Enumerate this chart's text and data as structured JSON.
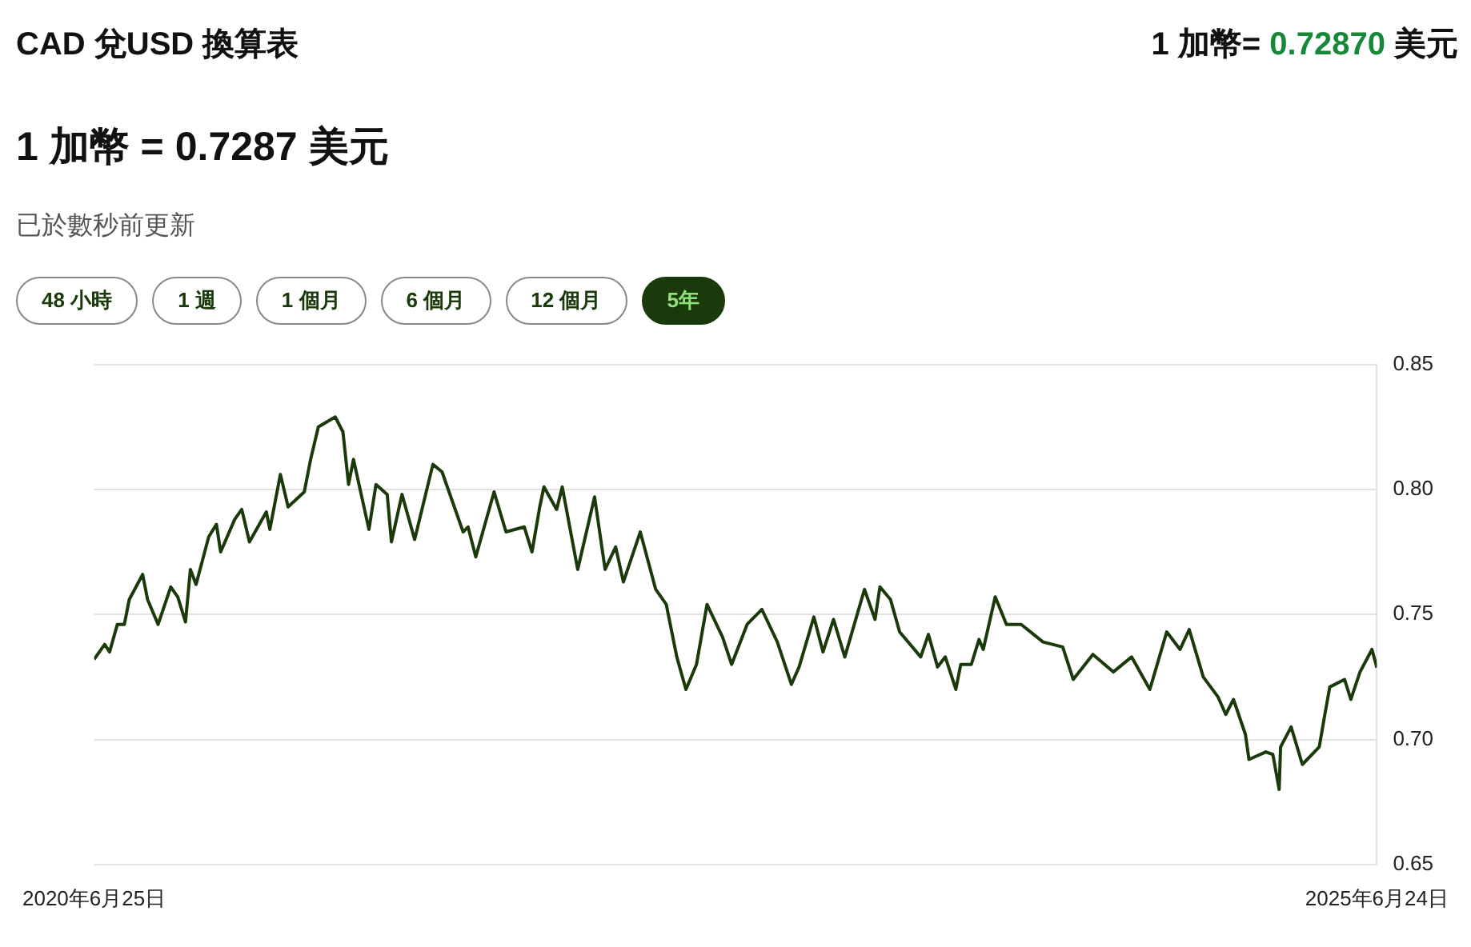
{
  "chart_data": {
    "type": "line",
    "title": "CAD 兌USD 換算表",
    "subtitle": "1 加幣 = 0.7287 美元",
    "annotations": [
      "1 加幣= 0.72870 美元",
      "已於數秒前更新",
      "48 小時",
      "1 週",
      "1 個月",
      "6 個月",
      "12 個月",
      "5年"
    ],
    "x": [
      "2020-06-25",
      "2020-07-10",
      "2020-07-17",
      "2020-07-28",
      "2020-08-07",
      "2020-08-14",
      "2020-09-02",
      "2020-09-09",
      "2020-09-24",
      "2020-10-12",
      "2020-10-22",
      "2020-11-02",
      "2020-11-09",
      "2020-11-17",
      "2020-12-05",
      "2020-12-16",
      "2020-12-22",
      "2021-01-11",
      "2021-01-21",
      "2021-02-01",
      "2021-02-25",
      "2021-03-02",
      "2021-03-17",
      "2021-03-28",
      "2021-04-20",
      "2021-04-29",
      "2021-05-10",
      "2021-06-03",
      "2021-06-14",
      "2021-06-22",
      "2021-06-29",
      "2021-07-21",
      "2021-07-31",
      "2021-08-16",
      "2021-08-22",
      "2021-09-06",
      "2021-09-24",
      "2021-10-20",
      "2021-11-02",
      "2021-12-02",
      "2021-12-09",
      "2021-12-20",
      "2022-01-15",
      "2022-02-01",
      "2022-02-27",
      "2022-03-10",
      "2022-03-21",
      "2022-03-27",
      "2022-04-14",
      "2022-04-22",
      "2022-05-14",
      "2022-06-07",
      "2022-06-22",
      "2022-07-07",
      "2022-07-18",
      "2022-08-11",
      "2022-09-02",
      "2022-09-17",
      "2022-10-02",
      "2022-10-15",
      "2022-10-30",
      "2022-11-14",
      "2022-12-06",
      "2022-12-19",
      "2023-01-10",
      "2023-01-31",
      "2023-02-22",
      "2023-03-14",
      "2023-03-25",
      "2023-04-15",
      "2023-04-28",
      "2023-05-13",
      "2023-05-29",
      "2023-06-26",
      "2023-07-11",
      "2023-07-18",
      "2023-08-02",
      "2023-08-15",
      "2023-09-14",
      "2023-09-25",
      "2023-10-08",
      "2023-10-19",
      "2023-11-03",
      "2023-11-10",
      "2023-11-25",
      "2023-12-06",
      "2023-12-12",
      "2023-12-29",
      "2024-01-14",
      "2024-02-04",
      "2024-03-06",
      "2024-04-03",
      "2024-04-18",
      "2024-05-16",
      "2024-06-14",
      "2024-07-10",
      "2024-08-05",
      "2024-08-29",
      "2024-09-17",
      "2024-09-30",
      "2024-10-20",
      "2024-11-10",
      "2024-11-21",
      "2024-12-02",
      "2024-12-19",
      "2024-12-24",
      "2025-01-17",
      "2025-01-27",
      "2025-02-05",
      "2025-02-07",
      "2025-02-22",
      "2025-03-10",
      "2025-04-03",
      "2025-04-11",
      "2025-04-18",
      "2025-05-09",
      "2025-05-18",
      "2025-05-31",
      "2025-06-17",
      "2025-06-24"
    ],
    "series": [
      {
        "color": "#1b3a0b",
        "values": [
          0.732,
          0.738,
          0.735,
          0.746,
          0.746,
          0.756,
          0.766,
          0.756,
          0.746,
          0.761,
          0.757,
          0.747,
          0.768,
          0.762,
          0.781,
          0.786,
          0.775,
          0.788,
          0.792,
          0.779,
          0.791,
          0.784,
          0.806,
          0.793,
          0.799,
          0.812,
          0.825,
          0.829,
          0.823,
          0.802,
          0.812,
          0.784,
          0.802,
          0.798,
          0.779,
          0.798,
          0.78,
          0.81,
          0.807,
          0.783,
          0.785,
          0.773,
          0.799,
          0.783,
          0.785,
          0.775,
          0.793,
          0.801,
          0.792,
          0.801,
          0.768,
          0.797,
          0.768,
          0.777,
          0.763,
          0.783,
          0.76,
          0.754,
          0.733,
          0.72,
          0.73,
          0.754,
          0.741,
          0.73,
          0.746,
          0.752,
          0.739,
          0.722,
          0.729,
          0.749,
          0.735,
          0.748,
          0.733,
          0.76,
          0.748,
          0.761,
          0.756,
          0.743,
          0.733,
          0.742,
          0.729,
          0.733,
          0.72,
          0.73,
          0.73,
          0.74,
          0.736,
          0.757,
          0.746,
          0.746,
          0.739,
          0.737,
          0.724,
          0.734,
          0.727,
          0.733,
          0.72,
          0.743,
          0.736,
          0.744,
          0.725,
          0.717,
          0.71,
          0.716,
          0.702,
          0.692,
          0.695,
          0.694,
          0.68,
          0.697,
          0.705,
          0.69,
          0.697,
          0.71,
          0.721,
          0.724,
          0.716,
          0.727,
          0.736,
          0.7287
        ]
      }
    ],
    "xlim": [
      "2020-06-25",
      "2025-06-24"
    ],
    "xticks": [
      {
        "value": "2020-06-25",
        "label": "2020年6月25日"
      },
      {
        "value": "2025-06-24",
        "label": "2025年6月24日"
      }
    ],
    "ylim": [
      0.65,
      0.85
    ],
    "yticks": [
      0.65,
      {
        "value": 0.7,
        "label": "0.70"
      },
      0.75,
      {
        "value": 0.8,
        "label": "0.80"
      },
      0.85
    ],
    "grid": "y",
    "legend": false,
    "marker": "none",
    "line_style": "solid"
  }
}
